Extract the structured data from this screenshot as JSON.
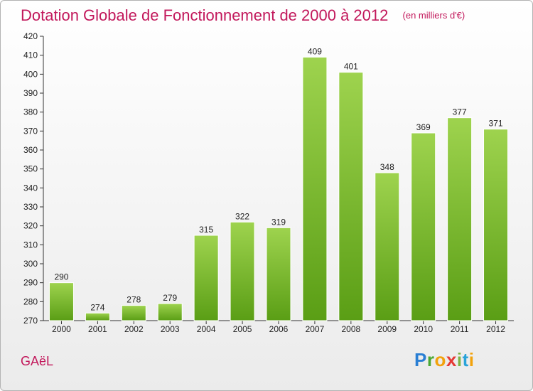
{
  "header": {
    "title": "Dotation Globale de Fonctionnement de 2000 à 2012",
    "subtitle": "(en milliers d'€)"
  },
  "footer": {
    "commune": "GAëL",
    "logo": "Proxiti"
  },
  "colors": {
    "bar_top": "#9ed34e",
    "bar_bottom": "#5a9e15",
    "title": "#c2185b"
  },
  "chart_data": {
    "type": "bar",
    "categories": [
      "2000",
      "2001",
      "2002",
      "2003",
      "2004",
      "2005",
      "2006",
      "2007",
      "2008",
      "2009",
      "2010",
      "2011",
      "2012"
    ],
    "values": [
      290,
      274,
      278,
      279,
      315,
      322,
      319,
      409,
      401,
      348,
      369,
      377,
      371
    ],
    "title": "Dotation Globale de Fonctionnement de 2000 à 2012",
    "subtitle": "(en milliers d'€)",
    "xlabel": "",
    "ylabel": "",
    "ylim": [
      270,
      420
    ],
    "yticks": [
      270,
      280,
      290,
      300,
      310,
      320,
      330,
      340,
      350,
      360,
      370,
      380,
      390,
      400,
      410,
      420
    ],
    "grid": false,
    "legend": "none"
  }
}
